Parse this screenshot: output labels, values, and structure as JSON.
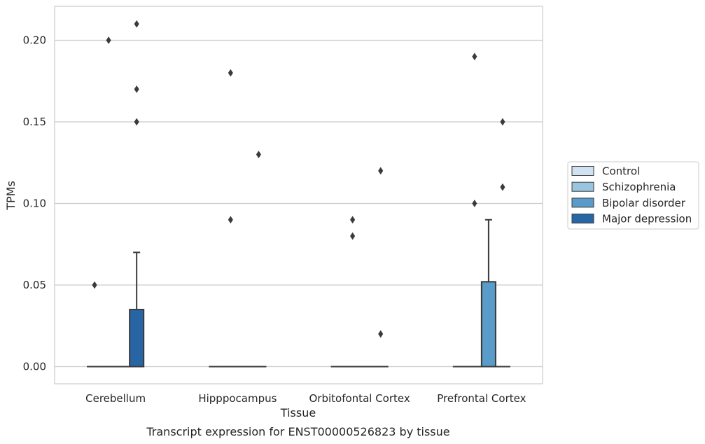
{
  "chart_data": {
    "type": "box",
    "caption": "Transcript expression for ENST00000526823 by tissue",
    "xlabel": "Tissue",
    "ylabel": "TPMs",
    "ylim": [
      -0.01,
      0.22
    ],
    "yticks": [
      0.0,
      0.05,
      0.1,
      0.15,
      0.2
    ],
    "ytick_labels": [
      "0.00",
      "0.05",
      "0.10",
      "0.15",
      "0.20"
    ],
    "grid": true,
    "legend_position": "right",
    "categories": [
      "Cerebellum",
      "Hipppocampus",
      "Orbitofontal Cortex",
      "Prefrontal Cortex"
    ],
    "series": [
      {
        "name": "Control",
        "color": "#d0e2f2",
        "boxes": [
          {
            "q1": 0,
            "median": 0,
            "q3": 0,
            "whisker_low": 0,
            "whisker_high": 0,
            "outliers": [
              0.05
            ]
          },
          {
            "q1": 0,
            "median": 0,
            "q3": 0,
            "whisker_low": 0,
            "whisker_high": 0,
            "outliers": []
          },
          {
            "q1": 0,
            "median": 0,
            "q3": 0,
            "whisker_low": 0,
            "whisker_high": 0,
            "outliers": []
          },
          {
            "q1": 0,
            "median": 0,
            "q3": 0,
            "whisker_low": 0,
            "whisker_high": 0,
            "outliers": []
          }
        ]
      },
      {
        "name": "Schizophrenia",
        "color": "#9ac5e0",
        "boxes": [
          {
            "q1": 0,
            "median": 0,
            "q3": 0,
            "whisker_low": 0,
            "whisker_high": 0,
            "outliers": [
              0.2
            ]
          },
          {
            "q1": 0,
            "median": 0,
            "q3": 0,
            "whisker_low": 0,
            "whisker_high": 0,
            "outliers": [
              0.09,
              0.18
            ]
          },
          {
            "q1": 0,
            "median": 0,
            "q3": 0,
            "whisker_low": 0,
            "whisker_high": 0,
            "outliers": [
              0.08,
              0.09
            ]
          },
          {
            "q1": 0,
            "median": 0,
            "q3": 0,
            "whisker_low": 0,
            "whisker_high": 0,
            "outliers": [
              0.1,
              0.19
            ]
          }
        ]
      },
      {
        "name": "Bipolar disorder",
        "color": "#5a9cc9",
        "boxes": [
          {
            "q1": 0,
            "median": 0,
            "q3": 0,
            "whisker_low": 0,
            "whisker_high": 0,
            "outliers": []
          },
          {
            "q1": 0,
            "median": 0,
            "q3": 0,
            "whisker_low": 0,
            "whisker_high": 0,
            "outliers": []
          },
          {
            "q1": 0,
            "median": 0,
            "q3": 0,
            "whisker_low": 0,
            "whisker_high": 0,
            "outliers": []
          },
          {
            "q1": 0,
            "median": 0,
            "q3": 0.052,
            "whisker_low": 0,
            "whisker_high": 0.09,
            "outliers": []
          }
        ]
      },
      {
        "name": "Major depression",
        "color": "#2765a5",
        "boxes": [
          {
            "q1": 0,
            "median": 0,
            "q3": 0.035,
            "whisker_low": 0,
            "whisker_high": 0.07,
            "outliers": [
              0.15,
              0.17,
              0.21
            ]
          },
          {
            "q1": 0,
            "median": 0,
            "q3": 0,
            "whisker_low": 0,
            "whisker_high": 0,
            "outliers": [
              0.13
            ]
          },
          {
            "q1": 0,
            "median": 0,
            "q3": 0,
            "whisker_low": 0,
            "whisker_high": 0,
            "outliers": [
              0.02,
              0.12
            ]
          },
          {
            "q1": 0,
            "median": 0,
            "q3": 0,
            "whisker_low": 0,
            "whisker_high": 0,
            "outliers": [
              0.11,
              0.15
            ]
          }
        ]
      }
    ]
  }
}
